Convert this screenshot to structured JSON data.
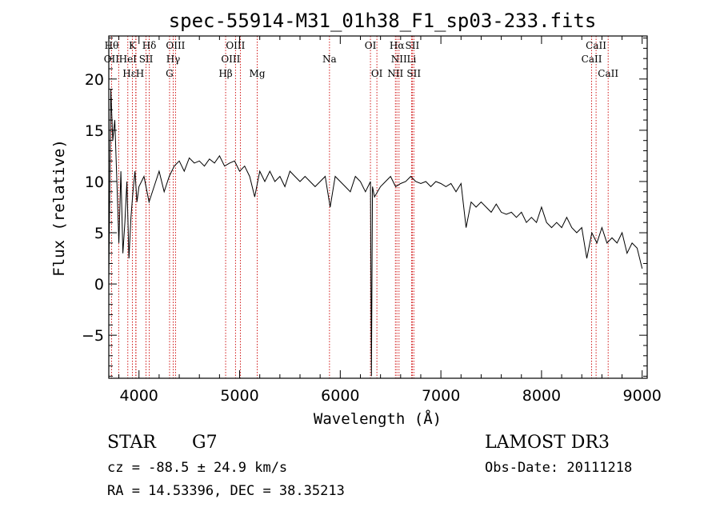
{
  "chart_data": {
    "type": "line",
    "title": "spec-55914-M31_01h38_F1_sp03-233.fits",
    "xlabel": "Wavelength (Å)",
    "ylabel": "Flux (relative)",
    "xlim": [
      3700,
      9050
    ],
    "ylim": [
      -9.2,
      24.2
    ],
    "xticks": [
      4000,
      5000,
      6000,
      7000,
      8000,
      9000
    ],
    "yticks": [
      -5,
      0,
      5,
      10,
      15,
      20
    ],
    "grid": false,
    "series": [
      {
        "x": [
          3700,
          3720,
          3740,
          3760,
          3780,
          3800,
          3820,
          3840,
          3860,
          3880,
          3900,
          3920,
          3940,
          3960,
          3980,
          4000,
          4050,
          4100,
          4150,
          4200,
          4250,
          4300,
          4350,
          4400,
          4450,
          4500,
          4550,
          4600,
          4650,
          4700,
          4750,
          4800,
          4850,
          4900,
          4950,
          5000,
          5050,
          5100,
          5150,
          5200,
          5250,
          5300,
          5350,
          5400,
          5450,
          5500,
          5550,
          5600,
          5650,
          5700,
          5750,
          5800,
          5850,
          5900,
          5950,
          6000,
          6050,
          6100,
          6150,
          6200,
          6250,
          6300,
          6310,
          6320,
          6340,
          6400,
          6450,
          6500,
          6550,
          6600,
          6650,
          6700,
          6750,
          6800,
          6850,
          6900,
          6950,
          7000,
          7050,
          7100,
          7150,
          7200,
          7250,
          7300,
          7350,
          7400,
          7450,
          7500,
          7550,
          7600,
          7650,
          7700,
          7750,
          7800,
          7850,
          7900,
          7950,
          8000,
          8050,
          8100,
          8150,
          8200,
          8250,
          8300,
          8350,
          8400,
          8450,
          8500,
          8550,
          8600,
          8650,
          8700,
          8750,
          8800,
          8850,
          8900,
          8950,
          9000
        ],
        "values": [
          0.5,
          19.0,
          14.0,
          16.0,
          10.0,
          4.0,
          11.0,
          3.0,
          6.0,
          10.0,
          2.5,
          6.5,
          9.0,
          11.0,
          8.0,
          9.5,
          10.5,
          8.0,
          9.5,
          11.0,
          9.0,
          10.5,
          11.5,
          12.0,
          11.0,
          12.3,
          11.8,
          12.0,
          11.5,
          12.2,
          11.8,
          12.5,
          11.5,
          11.8,
          12.0,
          11.0,
          11.5,
          10.5,
          8.5,
          11.0,
          10.0,
          11.0,
          10.0,
          10.5,
          9.5,
          11.0,
          10.5,
          10.0,
          10.5,
          10.0,
          9.5,
          10.0,
          10.5,
          7.5,
          10.5,
          10.0,
          9.5,
          9.0,
          10.5,
          10.0,
          9.0,
          10.0,
          -9.0,
          9.5,
          8.5,
          9.5,
          10.0,
          10.5,
          9.5,
          9.8,
          10.0,
          10.5,
          10.0,
          9.8,
          10.0,
          9.5,
          10.0,
          9.8,
          9.5,
          9.8,
          9.0,
          9.8,
          5.5,
          8.0,
          7.5,
          8.0,
          7.5,
          7.0,
          7.8,
          7.0,
          6.8,
          7.0,
          6.5,
          7.0,
          6.0,
          6.5,
          6.0,
          7.5,
          6.0,
          5.5,
          6.0,
          5.5,
          6.5,
          5.5,
          5.0,
          5.5,
          2.5,
          5.0,
          4.0,
          5.5,
          4.0,
          4.5,
          4.0,
          5.0,
          3.0,
          4.0,
          3.5,
          1.5
        ]
      }
    ],
    "lines": [
      {
        "label": "Hθ",
        "x": 3798,
        "row": 0,
        "align": "end"
      },
      {
        "label": "K",
        "x": 3934,
        "row": 0,
        "align": "middle"
      },
      {
        "label": "Hδ",
        "x": 4102,
        "row": 0,
        "align": "middle"
      },
      {
        "label": "OIII",
        "x": 4363,
        "row": 0,
        "align": "middle"
      },
      {
        "label": "OIII",
        "x": 4959,
        "row": 0,
        "align": "middle"
      },
      {
        "label": "OI",
        "x": 6300,
        "row": 0,
        "align": "middle"
      },
      {
        "label": "Hα",
        "x": 6563,
        "row": 0,
        "align": "middle"
      },
      {
        "label": "SII",
        "x": 6716,
        "row": 0,
        "align": "middle"
      },
      {
        "label": "CaII",
        "x": 8542,
        "row": 0,
        "align": "middle"
      },
      {
        "label": "OII",
        "x": 3727,
        "row": 1,
        "align": "middle"
      },
      {
        "label": "HeI",
        "x": 3889,
        "row": 1,
        "align": "middle"
      },
      {
        "label": "SII",
        "x": 4070,
        "row": 1,
        "align": "middle"
      },
      {
        "label": "Hγ",
        "x": 4340,
        "row": 1,
        "align": "middle"
      },
      {
        "label": "OIII",
        "x": 5007,
        "row": 1,
        "align": "end"
      },
      {
        "label": "Na",
        "x": 5893,
        "row": 1,
        "align": "middle"
      },
      {
        "label": "NII",
        "x": 6584,
        "row": 1,
        "align": "middle"
      },
      {
        "label": "Li",
        "x": 6708,
        "row": 1,
        "align": "middle"
      },
      {
        "label": "CaII",
        "x": 8498,
        "row": 1,
        "align": "middle"
      },
      {
        "label": "Hε",
        "x": 3970,
        "row": 2,
        "align": "end"
      },
      {
        "label": "H",
        "x": 3968,
        "row": 2,
        "align": "start"
      },
      {
        "label": "G",
        "x": 4304,
        "row": 2,
        "align": "middle"
      },
      {
        "label": "Hβ",
        "x": 4861,
        "row": 2,
        "align": "middle"
      },
      {
        "label": "Mg",
        "x": 5175,
        "row": 2,
        "align": "middle"
      },
      {
        "label": "OI",
        "x": 6364,
        "row": 2,
        "align": "middle"
      },
      {
        "label": "NII",
        "x": 6548,
        "row": 2,
        "align": "middle"
      },
      {
        "label": "SII",
        "x": 6731,
        "row": 2,
        "align": "middle"
      },
      {
        "label": "CaII",
        "x": 8662,
        "row": 2,
        "align": "middle"
      }
    ],
    "colors": {
      "line_markers": "#cc0000",
      "spectrum": "#000000"
    }
  },
  "info": {
    "class": "STAR",
    "subclass": "G7",
    "survey": "LAMOST DR3",
    "cz": "cz = -88.5 ± 24.9 km/s",
    "obs_date": "Obs-Date: 20111218",
    "coords": "RA =  14.53396, DEC =  38.35213"
  }
}
